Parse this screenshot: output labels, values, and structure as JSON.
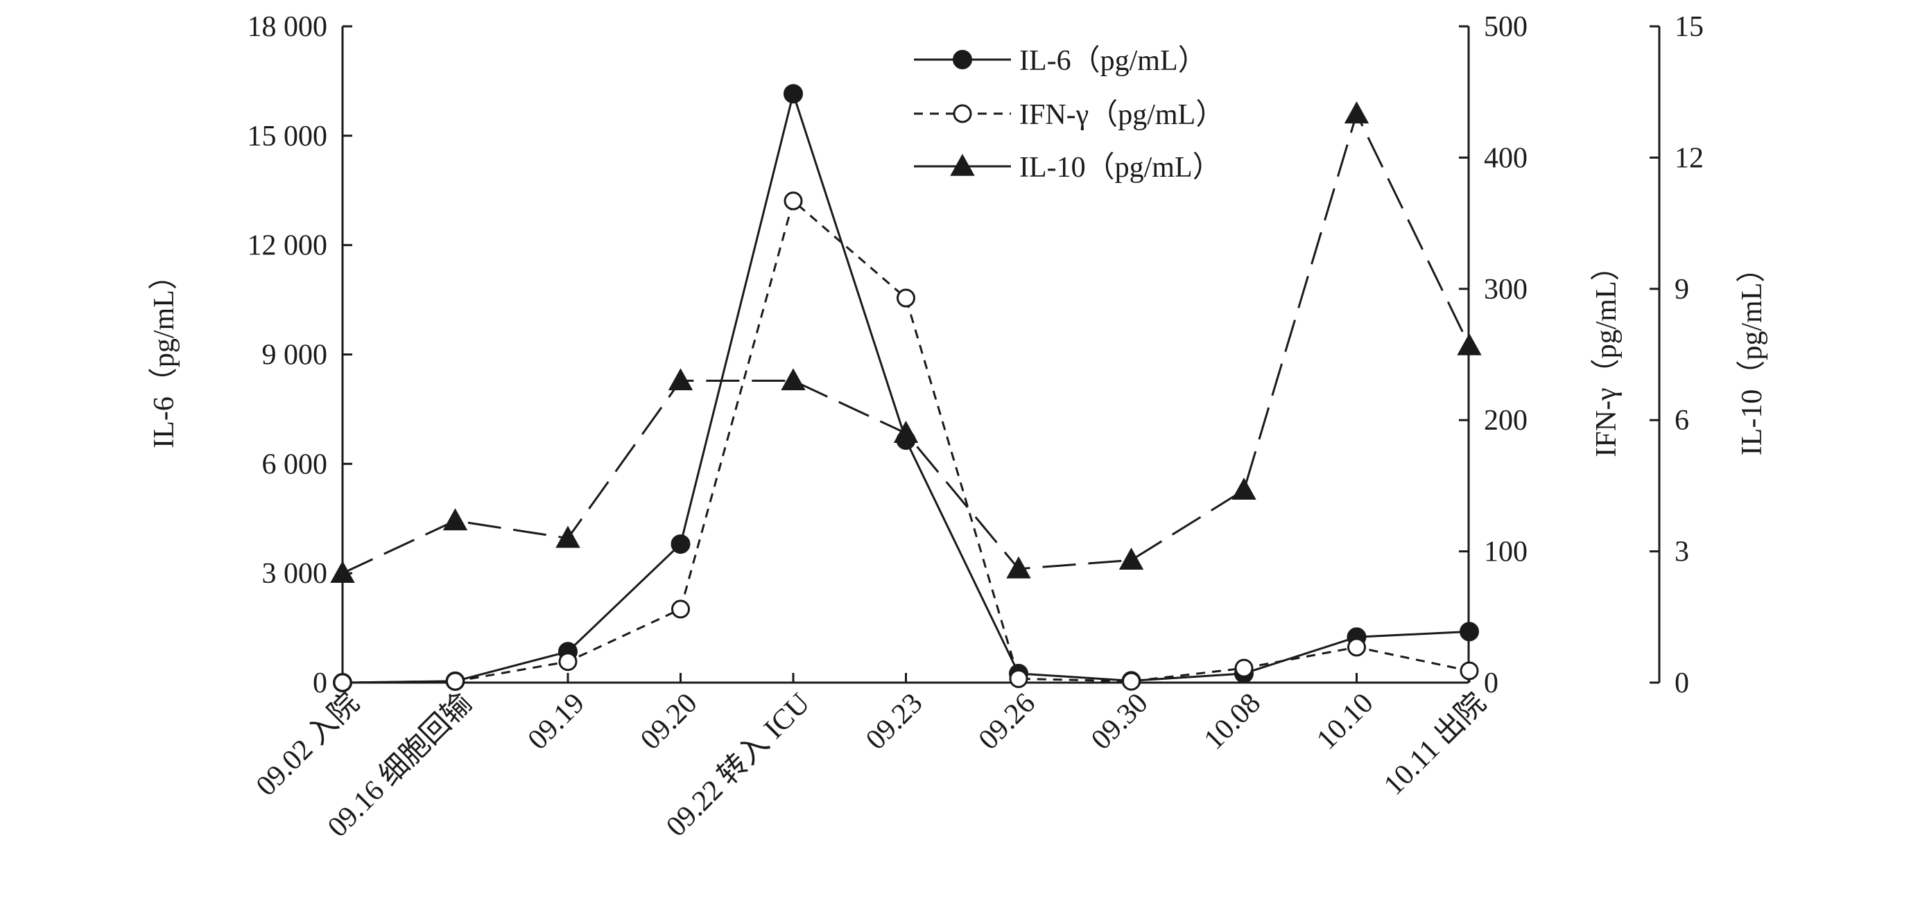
{
  "chart_data": {
    "type": "line",
    "categories": [
      "09.02 入院",
      "09.16 细胞回输",
      "09.19",
      "09.20",
      "09.22 转入 ICU",
      "09.23",
      "09.26",
      "09.30",
      "10.08",
      "10.10",
      "10.11 出院"
    ],
    "series": [
      {
        "name": "IL-6（pg/mL）",
        "axis": "left",
        "marker": "filled-circle",
        "line": "solid",
        "values": [
          0,
          40,
          850,
          3800,
          16150,
          6650,
          250,
          50,
          250,
          1250,
          1400
        ]
      },
      {
        "name": "IFN-γ（pg/mL）",
        "axis": "right1",
        "marker": "open-circle",
        "line": "short-dash",
        "values": [
          0,
          1,
          16,
          56,
          367,
          293,
          3,
          1,
          11,
          27,
          9
        ]
      },
      {
        "name": "IL-10（pg/mL）",
        "axis": "right2",
        "marker": "filled-triangle",
        "line": "long-dash",
        "values": [
          2.5,
          3.7,
          3.3,
          6.9,
          6.9,
          5.7,
          2.6,
          2.8,
          4.4,
          13.0,
          7.7
        ]
      }
    ],
    "axes": {
      "left": {
        "label": "IL-6（pg/mL）",
        "min": 0,
        "max": 18000,
        "ticks": [
          "0",
          "3 000",
          "6 000",
          "9 000",
          "12 000",
          "15 000",
          "18 000"
        ]
      },
      "right1": {
        "label": "IFN-γ（pg/mL）",
        "min": 0,
        "max": 500,
        "ticks": [
          "0",
          "100",
          "200",
          "300",
          "400",
          "500"
        ]
      },
      "right2": {
        "label": "IL-10（pg/mL）",
        "min": 0,
        "max": 15,
        "ticks": [
          "0",
          "3",
          "6",
          "9",
          "12",
          "15"
        ]
      }
    },
    "grid": false,
    "legend": "top-center",
    "colors": {
      "ink": "#1a1a1a",
      "background": "#ffffff"
    }
  }
}
